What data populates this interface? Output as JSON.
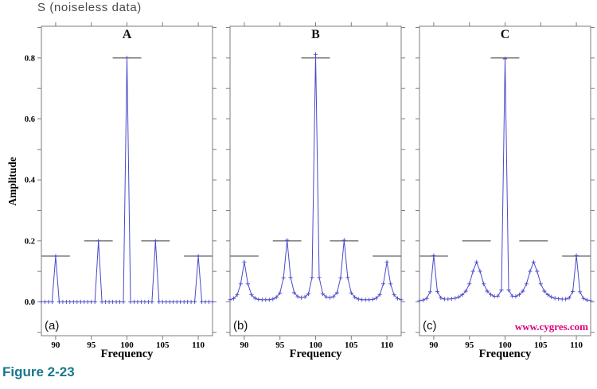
{
  "title": "S (noiseless data)",
  "figure_caption": "Figure 2-23",
  "watermark": "www.cygres.com",
  "colors": {
    "curve": "#4a4ac9",
    "axis": "#7d7d7d",
    "reference_line": "#6e6e6e",
    "tick_text": "#000000",
    "title_text": "#4a4a4a",
    "caption_text": "#17778a",
    "watermark_text": "#e0007a",
    "background": "#ffffff"
  },
  "chart_data": {
    "type": "line",
    "title": "S (noiseless data)",
    "xlabel": "Frequency",
    "ylabel": "Amplitude",
    "layout": {
      "xlim": [
        88,
        112
      ],
      "ylim": [
        -0.111,
        0.904
      ],
      "xticks": [
        90,
        95,
        100,
        105,
        110
      ],
      "xtick_labels": [
        "90",
        "95",
        "100",
        "105",
        "110"
      ],
      "ytick_values": [
        0,
        0.2,
        0.4,
        0.6,
        0.8
      ],
      "ytick_labels": [
        "0.0",
        "0.2",
        "0.4",
        "0.6",
        "0.8"
      ],
      "ytick_minor_step": 0.1,
      "grid": false,
      "legend": false,
      "marker": "+",
      "ticks_direction": "out"
    },
    "x": [
      88,
      88.5,
      89,
      89.5,
      90,
      90.5,
      91,
      91.5,
      92,
      92.5,
      93,
      93.5,
      94,
      94.5,
      95,
      95.5,
      96,
      96.5,
      97,
      97.5,
      98,
      98.5,
      99,
      99.5,
      100,
      100.5,
      101,
      101.5,
      102,
      102.5,
      103,
      103.5,
      104,
      104.5,
      105,
      105.5,
      106,
      106.5,
      107,
      107.5,
      108,
      108.5,
      109,
      109.5,
      110,
      110.5,
      111,
      111.5,
      112
    ],
    "reference_segments": [
      {
        "x1": 88,
        "x2": 92,
        "y": 0.15
      },
      {
        "x1": 94,
        "x2": 98,
        "y": 0.2
      },
      {
        "x1": 98,
        "x2": 102,
        "y": 0.8
      },
      {
        "x1": 102,
        "x2": 106,
        "y": 0.2
      },
      {
        "x1": 108,
        "x2": 112,
        "y": 0.15
      }
    ],
    "panels": [
      {
        "label": "A",
        "corner_label": "(a)",
        "values": [
          0,
          0,
          0,
          0,
          0.15,
          0,
          0,
          0,
          0,
          0,
          0,
          0,
          0,
          0,
          0,
          0,
          0.2,
          0,
          0,
          0,
          0,
          0,
          0,
          0,
          0.8,
          0,
          0,
          0,
          0,
          0,
          0,
          0,
          0.2,
          0,
          0,
          0,
          0,
          0,
          0,
          0,
          0,
          0,
          0,
          0,
          0.15,
          0,
          0,
          0,
          0
        ]
      },
      {
        "label": "B",
        "corner_label": "(b)",
        "values": [
          0.007,
          0.011,
          0.023,
          0.059,
          0.131,
          0.059,
          0.023,
          0.012,
          0.008,
          0.007,
          0.007,
          0.007,
          0.009,
          0.015,
          0.029,
          0.079,
          0.202,
          0.08,
          0.03,
          0.017,
          0.014,
          0.016,
          0.026,
          0.08,
          0.812,
          0.08,
          0.026,
          0.016,
          0.014,
          0.017,
          0.03,
          0.079,
          0.202,
          0.08,
          0.029,
          0.015,
          0.009,
          0.007,
          0.007,
          0.007,
          0.008,
          0.012,
          0.023,
          0.059,
          0.131,
          0.059,
          0.023,
          0.011,
          0.007
        ]
      },
      {
        "label": "C",
        "corner_label": "(c)",
        "values": [
          0.004,
          0.006,
          0.011,
          0.033,
          0.152,
          0.034,
          0.013,
          0.009,
          0.009,
          0.01,
          0.012,
          0.016,
          0.023,
          0.035,
          0.059,
          0.1,
          0.131,
          0.1,
          0.059,
          0.035,
          0.024,
          0.018,
          0.019,
          0.039,
          0.797,
          0.039,
          0.019,
          0.018,
          0.024,
          0.035,
          0.059,
          0.1,
          0.131,
          0.1,
          0.059,
          0.035,
          0.023,
          0.016,
          0.012,
          0.01,
          0.009,
          0.009,
          0.013,
          0.034,
          0.152,
          0.033,
          0.011,
          0.006,
          0.004
        ]
      }
    ]
  }
}
